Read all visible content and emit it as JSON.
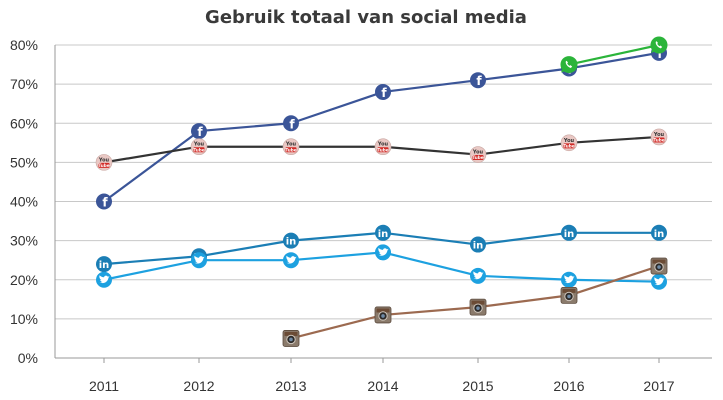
{
  "chart_data": {
    "type": "line",
    "title": "Gebruik totaal van social media",
    "xlabel": "",
    "ylabel": "",
    "categories": [
      "2011",
      "2012",
      "2013",
      "2014",
      "2015",
      "2016",
      "2017"
    ],
    "y_ticks": [
      "0%",
      "10%",
      "20%",
      "30%",
      "40%",
      "50%",
      "60%",
      "70%",
      "80%"
    ],
    "ylim": [
      0,
      80
    ],
    "grid": "horizontal",
    "legend": "none (platform icons at each data point)",
    "series": [
      {
        "icon": "facebook-icon",
        "color": "#3b5598",
        "values": [
          40,
          58,
          60,
          68,
          71,
          74,
          78
        ]
      },
      {
        "icon": "youtube-icon",
        "color": "#333333",
        "values": [
          50,
          54,
          54,
          54,
          52,
          55,
          56.5
        ]
      },
      {
        "icon": "linkedin-icon",
        "color": "#1b7eb5",
        "values": [
          24,
          26,
          30,
          32,
          29,
          32,
          32
        ]
      },
      {
        "icon": "twitter-icon",
        "color": "#1da1e0",
        "values": [
          20,
          25,
          25,
          27,
          21,
          20,
          19.5
        ]
      },
      {
        "icon": "instagram-icon",
        "color": "#9c6a50",
        "values": [
          null,
          null,
          5,
          11,
          13,
          16,
          23.5
        ]
      },
      {
        "icon": "whatsapp-icon",
        "color": "#2bb43a",
        "values": [
          null,
          null,
          null,
          null,
          null,
          75,
          80
        ]
      }
    ]
  }
}
